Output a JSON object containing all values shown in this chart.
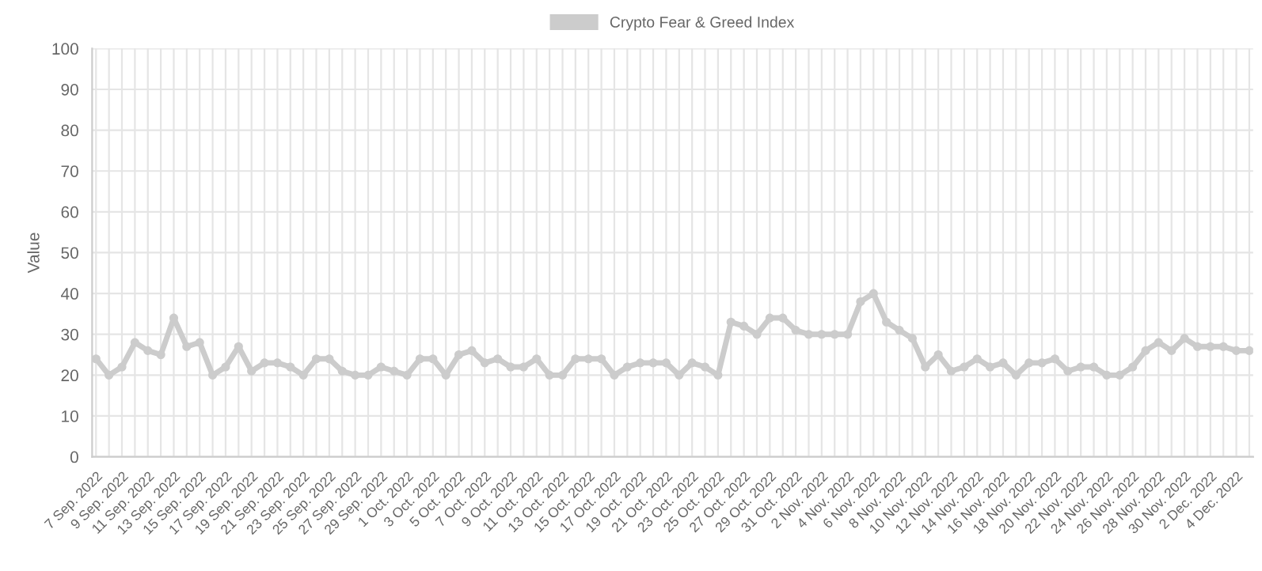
{
  "chart_data": {
    "type": "line",
    "ylabel": "Value",
    "categories": [
      "7 Sep. 2022",
      null,
      "9 Sep. 2022",
      null,
      "11 Sep. 2022",
      null,
      "13 Sep. 2022",
      null,
      "15 Sep. 2022",
      null,
      "17 Sep. 2022",
      null,
      "19 Sep. 2022",
      null,
      "21 Sep. 2022",
      null,
      "23 Sep. 2022",
      null,
      "25 Sep. 2022",
      null,
      "27 Sep. 2022",
      null,
      "29 Sep. 2022",
      null,
      "1 Oct. 2022",
      null,
      "3 Oct. 2022",
      null,
      "5 Oct. 2022",
      null,
      "7 Oct. 2022",
      null,
      "9 Oct. 2022",
      null,
      "11 Oct. 2022",
      null,
      "13 Oct. 2022",
      null,
      "15 Oct. 2022",
      null,
      "17 Oct. 2022",
      null,
      "19 Oct. 2022",
      null,
      "21 Oct. 2022",
      null,
      "23 Oct. 2022",
      null,
      "25 Oct. 2022",
      null,
      "27 Oct. 2022",
      null,
      "29 Oct. 2022",
      null,
      "31 Oct. 2022",
      null,
      "2 Nov. 2022",
      null,
      "4 Nov. 2022",
      null,
      "6 Nov. 2022",
      null,
      "8 Nov. 2022",
      null,
      "10 Nov. 2022",
      null,
      "12 Nov. 2022",
      null,
      "14 Nov. 2022",
      null,
      "16 Nov. 2022",
      null,
      "18 Nov. 2022",
      null,
      "20 Nov. 2022",
      null,
      "22 Nov. 2022",
      null,
      "24 Nov. 2022",
      null,
      "26 Nov. 2022",
      null,
      "28 Nov. 2022",
      null,
      "30 Nov. 2022",
      null,
      "2 Dec. 2022",
      null,
      "4 Dec. 2022",
      null
    ],
    "series": [
      {
        "name": "Crypto Fear & Greed Index",
        "color": "#cccccc",
        "values": [
          24,
          20,
          22,
          28,
          26,
          25,
          34,
          27,
          28,
          20,
          22,
          27,
          21,
          23,
          23,
          22,
          20,
          24,
          24,
          21,
          20,
          20,
          22,
          21,
          20,
          24,
          24,
          20,
          25,
          26,
          23,
          24,
          22,
          22,
          24,
          20,
          20,
          24,
          24,
          24,
          20,
          22,
          23,
          23,
          23,
          20,
          23,
          22,
          20,
          33,
          32,
          30,
          34,
          34,
          31,
          30,
          30,
          30,
          30,
          38,
          40,
          33,
          31,
          29,
          22,
          25,
          21,
          22,
          24,
          22,
          23,
          20,
          23,
          23,
          24,
          21,
          22,
          22,
          20,
          20,
          22,
          26,
          28,
          26,
          29,
          27,
          27,
          27,
          26,
          26
        ]
      }
    ],
    "ylim": [
      0,
      100
    ],
    "yticks": [
      0,
      10,
      20,
      30,
      40,
      50,
      60,
      70,
      80,
      90,
      100
    ],
    "grid": true,
    "legend": "top",
    "marker": "circle",
    "line_style": "solid"
  }
}
